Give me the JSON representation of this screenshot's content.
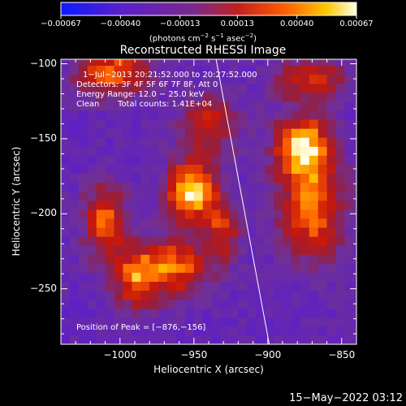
{
  "chart_data": {
    "type": "heatmap",
    "title": "Reconstructed RHESSI Image",
    "xlabel": "Heliocentric X (arcsec)",
    "ylabel": "Heliocentric Y (arcsec)",
    "xlim": [
      -1040,
      -840
    ],
    "ylim": [
      -287,
      -97
    ],
    "xticks": [
      -1000,
      -950,
      -900,
      -850
    ],
    "xtick_labels": [
      "−1000",
      "−950",
      "−900",
      "−850"
    ],
    "yticks": [
      -250,
      -200,
      -150,
      -100
    ],
    "ytick_labels": [
      "−250",
      "−200",
      "−150",
      "−100"
    ],
    "colorbar": {
      "ticks": [
        -0.00067,
        -0.0004,
        -0.00013,
        0.00013,
        0.0004,
        0.00067
      ],
      "tick_labels": [
        "−0.00067",
        "−0.00040",
        "−0.00013",
        "0.00013",
        "0.00040",
        "0.00067"
      ],
      "units_text": "(photons cm",
      "units_sup1": "−2",
      "units_mid": " s",
      "units_sup2": "−1",
      "units_end": " asec",
      "units_sup3": "−2",
      "units_close": ")"
    },
    "sources": [
      {
        "x": -952,
        "y": -185,
        "peak": 1.0,
        "sx": 12,
        "sy": 14
      },
      {
        "x": -876,
        "y": -156,
        "peak": 0.95,
        "sx": 14,
        "sy": 16
      },
      {
        "x": -1005,
        "y": -105,
        "peak": 0.7,
        "sx": 18,
        "sy": 12
      },
      {
        "x": -1010,
        "y": -205,
        "peak": 0.7,
        "sx": 10,
        "sy": 18
      },
      {
        "x": -965,
        "y": -235,
        "peak": 0.75,
        "sx": 18,
        "sy": 14
      },
      {
        "x": -940,
        "y": -140,
        "peak": 0.55,
        "sx": 14,
        "sy": 14
      },
      {
        "x": -990,
        "y": -245,
        "peak": 0.55,
        "sx": 10,
        "sy": 14
      },
      {
        "x": -870,
        "y": -200,
        "peak": 0.7,
        "sx": 16,
        "sy": 22
      },
      {
        "x": -870,
        "y": -110,
        "peak": 0.55,
        "sx": 18,
        "sy": 10
      },
      {
        "x": -930,
        "y": -210,
        "peak": 0.55,
        "sx": 8,
        "sy": 14
      }
    ],
    "limb_line": {
      "x": [
        -935,
        -899
      ],
      "y": [
        -97,
        -287
      ]
    },
    "annotations": {
      "time": "1−Jul−2013 20:21:52.000 to 20:27:52.000",
      "detectors": "Detectors: 3F 4F 5F 6F 7F 8F, Att 0",
      "energy": "Energy Range: 12.0 − 25.0 keV",
      "method": "Clean",
      "counts": "Total counts: 1.41E+04",
      "peak": "Position of Peak = [−876,−156]"
    }
  },
  "footer": {
    "date": "15−May−2022 03:12"
  },
  "colors": {
    "axis": "#ffffff",
    "limb": "#ffffff"
  }
}
